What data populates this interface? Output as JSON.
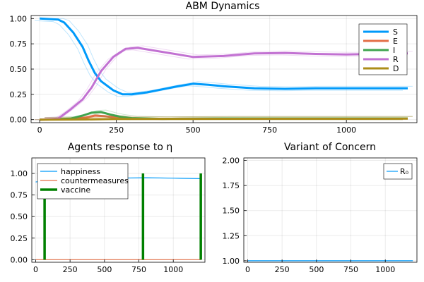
{
  "chart_data": [
    {
      "type": "line",
      "title": "ABM Dynamics",
      "xlabel": "",
      "ylabel": "",
      "xlim": [
        0,
        1200
      ],
      "ylim": [
        0,
        1
      ],
      "xticks": [
        0,
        250,
        500,
        750,
        1000
      ],
      "xtick_labels": [
        "0",
        "250",
        "500",
        "750",
        "1000"
      ],
      "yticks": [
        0,
        0.25,
        0.5,
        0.75,
        1.0
      ],
      "ytick_labels": [
        "0.00",
        "0.25",
        "0.50",
        "0.75",
        "1.00"
      ],
      "grid": true,
      "legend": "top-right",
      "series": [
        {
          "name": "S",
          "color": "#009AFA",
          "x": [
            0,
            60,
            80,
            110,
            140,
            160,
            180,
            200,
            240,
            270,
            300,
            350,
            400,
            450,
            500,
            550,
            600,
            700,
            800,
            900,
            1000,
            1100,
            1200
          ],
          "values": [
            1.0,
            0.99,
            0.96,
            0.86,
            0.72,
            0.58,
            0.46,
            0.38,
            0.29,
            0.25,
            0.25,
            0.27,
            0.3,
            0.33,
            0.355,
            0.345,
            0.33,
            0.31,
            0.305,
            0.31,
            0.31,
            0.31,
            0.31
          ]
        },
        {
          "name": "E",
          "color": "#E36F47",
          "x": [
            0,
            100,
            150,
            180,
            210,
            250,
            300,
            400,
            600,
            800,
            1000,
            1200
          ],
          "values": [
            0.0,
            0.005,
            0.02,
            0.04,
            0.035,
            0.02,
            0.01,
            0.008,
            0.012,
            0.012,
            0.012,
            0.012
          ]
        },
        {
          "name": "I",
          "color": "#3EA44E",
          "x": [
            0,
            100,
            140,
            170,
            200,
            230,
            260,
            300,
            400,
            600,
            800,
            1000,
            1200
          ],
          "values": [
            0.0,
            0.01,
            0.04,
            0.07,
            0.075,
            0.05,
            0.03,
            0.015,
            0.008,
            0.012,
            0.012,
            0.012,
            0.012
          ]
        },
        {
          "name": "R",
          "color": "#C271D2",
          "x": [
            0,
            60,
            100,
            140,
            170,
            200,
            240,
            280,
            320,
            400,
            500,
            600,
            700,
            800,
            900,
            1000,
            1100,
            1200
          ],
          "values": [
            0.0,
            0.01,
            0.1,
            0.2,
            0.32,
            0.48,
            0.62,
            0.7,
            0.71,
            0.67,
            0.62,
            0.63,
            0.655,
            0.66,
            0.65,
            0.645,
            0.65,
            0.655
          ]
        },
        {
          "name": "D",
          "color": "#AC8D18",
          "x": [
            0,
            150,
            250,
            400,
            800,
            1200
          ],
          "values": [
            0.0,
            0.002,
            0.006,
            0.008,
            0.009,
            0.01
          ]
        }
      ]
    },
    {
      "type": "line",
      "title": "Agents response to η",
      "xlabel": "",
      "ylabel": "",
      "xlim": [
        0,
        1200
      ],
      "ylim": [
        0,
        1
      ],
      "xticks": [
        0,
        250,
        500,
        750,
        1000
      ],
      "xtick_labels": [
        "0",
        "250",
        "500",
        "750",
        "1000"
      ],
      "yticks": [
        0,
        0.25,
        0.5,
        0.75,
        1.0
      ],
      "ytick_labels": [
        "0.00",
        "0.25",
        "0.50",
        "0.75",
        "1.00"
      ],
      "grid": true,
      "legend": "top-left",
      "series": [
        {
          "name": "happiness",
          "color": "#009AFA",
          "x": [
            0,
            60,
            65,
            100,
            150,
            170,
            200,
            300,
            400,
            600,
            800,
            1000,
            1200
          ],
          "values": [
            0.9,
            0.92,
            0.93,
            0.93,
            0.9,
            0.92,
            0.93,
            0.94,
            0.94,
            0.945,
            0.95,
            0.945,
            0.94
          ]
        },
        {
          "name": "countermeasures",
          "color": "#E36F47",
          "x": [
            0,
            1200
          ],
          "values": [
            0.0,
            0.0
          ]
        },
        {
          "name": "vaccine",
          "color": "#008000",
          "x": [
            60,
            65,
            65,
            780,
            780,
            1200,
            1200
          ],
          "values": [
            0.0,
            0.0,
            1.0,
            1.0,
            0.0,
            0.0,
            1.0
          ],
          "style": "spikes",
          "spikes_x": [
            65,
            780,
            1200
          ]
        }
      ]
    },
    {
      "type": "line",
      "title": "Variant of Concern",
      "xlabel": "",
      "ylabel": "",
      "xlim": [
        0,
        1200
      ],
      "ylim": [
        1,
        2
      ],
      "xticks": [
        0,
        250,
        500,
        750,
        1000
      ],
      "xtick_labels": [
        "0",
        "250",
        "500",
        "750",
        "1000"
      ],
      "yticks": [
        1.0,
        1.25,
        1.5,
        1.75,
        2.0
      ],
      "ytick_labels": [
        "1.00",
        "1.25",
        "1.50",
        "1.75",
        "2.00"
      ],
      "grid": true,
      "legend": "right",
      "series": [
        {
          "name": "R₀",
          "color": "#009AFA",
          "x": [
            0,
            1200
          ],
          "values": [
            1.0,
            1.0
          ]
        }
      ]
    }
  ]
}
